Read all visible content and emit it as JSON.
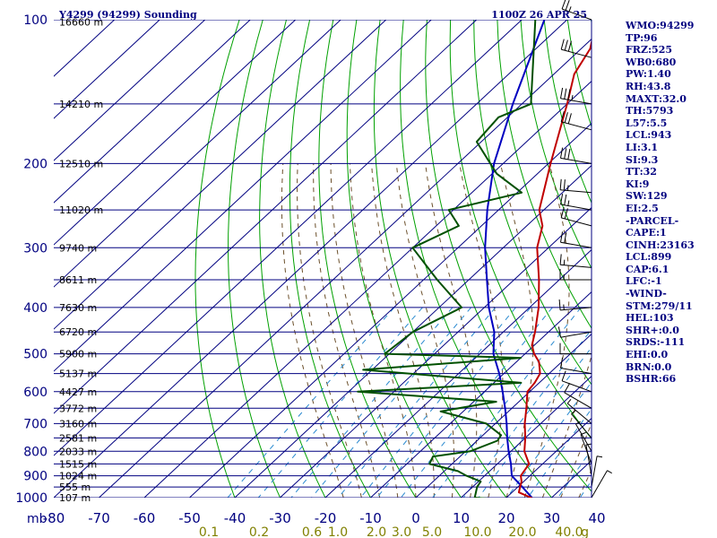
{
  "chart_data": {
    "type": "skew-t",
    "title_left": "Y4299 (94299) Sounding",
    "title_right": "1100Z 26 APR 25",
    "pressure_unit": "mb",
    "mixing_unit": "g",
    "pressure_ticks": [
      100,
      200,
      300,
      400,
      500,
      600,
      700,
      800,
      900,
      1000
    ],
    "pressure_ticks_text": [
      "100",
      "200",
      "300",
      "400",
      "500",
      "600",
      "700",
      "800",
      "900",
      "1000"
    ],
    "temperature_ticks": [
      -80,
      -70,
      -60,
      -50,
      -40,
      -30,
      -20,
      -10,
      0,
      10,
      20,
      30,
      40
    ],
    "temperature_ticks_text": [
      "-80",
      "-70",
      "-60",
      "-50",
      "-40",
      "-30",
      "-20",
      "-10",
      "0",
      "10",
      "20",
      "30",
      "40"
    ],
    "height_levels": [
      {
        "p": 101,
        "label": "16660 m"
      },
      {
        "p": 150,
        "label": "14210 m"
      },
      {
        "p": 200,
        "label": "12510 m"
      },
      {
        "p": 250,
        "label": "11020 m"
      },
      {
        "p": 300,
        "label": "9740 m"
      },
      {
        "p": 350,
        "label": "8611 m"
      },
      {
        "p": 400,
        "label": "7630 m"
      },
      {
        "p": 450,
        "label": "6720 m"
      },
      {
        "p": 500,
        "label": "5900 m"
      },
      {
        "p": 550,
        "label": "5137 m"
      },
      {
        "p": 600,
        "label": "4427 m"
      },
      {
        "p": 650,
        "label": "3772 m"
      },
      {
        "p": 700,
        "label": "3160 m"
      },
      {
        "p": 750,
        "label": "2581 m"
      },
      {
        "p": 800,
        "label": "2033 m"
      },
      {
        "p": 850,
        "label": "1515 m"
      },
      {
        "p": 900,
        "label": "1024 m"
      },
      {
        "p": 950,
        "label": "555 m"
      },
      {
        "p": 1000,
        "label": "107 m"
      }
    ],
    "mixing_ratio_labels": [
      "0.1",
      "0.2",
      "0.6",
      "1.0",
      "2.0",
      "3.0",
      "5.0",
      "10.0",
      "20.0",
      "40.0"
    ],
    "temperature_profile": [
      [
        1004,
        26.0
      ],
      [
        975,
        21.5
      ],
      [
        950,
        20.5
      ],
      [
        925,
        19.5
      ],
      [
        900,
        18.0
      ],
      [
        850,
        17.0
      ],
      [
        800,
        13.0
      ],
      [
        750,
        10.0
      ],
      [
        700,
        6.5
      ],
      [
        650,
        3.2
      ],
      [
        600,
        -0.5
      ],
      [
        575,
        -1.0
      ],
      [
        550,
        -2.0
      ],
      [
        520,
        -5.0
      ],
      [
        500,
        -8.0
      ],
      [
        480,
        -10.5
      ],
      [
        450,
        -13.0
      ],
      [
        400,
        -18.0
      ],
      [
        350,
        -24.5
      ],
      [
        300,
        -32.5
      ],
      [
        270,
        -36.5
      ],
      [
        250,
        -41.0
      ],
      [
        200,
        -49.5
      ],
      [
        150,
        -60.0
      ],
      [
        130,
        -65.5
      ],
      [
        115,
        -68.0
      ],
      [
        100,
        -73.5
      ]
    ],
    "dewpoint_profile": [
      [
        1004,
        16.0
      ],
      [
        1000,
        13.0
      ],
      [
        950,
        11.0
      ],
      [
        925,
        10.5
      ],
      [
        900,
        6.0
      ],
      [
        880,
        3.0
      ],
      [
        850,
        -5.0
      ],
      [
        820,
        -6.0
      ],
      [
        800,
        1.0
      ],
      [
        760,
        4.5
      ],
      [
        740,
        4.0
      ],
      [
        700,
        -2.0
      ],
      [
        660,
        -15.0
      ],
      [
        630,
        -5.0
      ],
      [
        600,
        -38.0
      ],
      [
        575,
        -4.0
      ],
      [
        540,
        -42.0
      ],
      [
        510,
        -10.0
      ],
      [
        500,
        -41.0
      ],
      [
        450,
        -40.0
      ],
      [
        400,
        -35.0
      ],
      [
        350,
        -47.0
      ],
      [
        300,
        -60.0
      ],
      [
        270,
        -55.0
      ],
      [
        250,
        -61.0
      ],
      [
        230,
        -49.0
      ],
      [
        210,
        -59.0
      ],
      [
        180,
        -71.0
      ],
      [
        160,
        -72.0
      ],
      [
        150,
        -68.0
      ],
      [
        100,
        -87.0
      ]
    ],
    "parcel_profile": [
      [
        1004,
        26.0
      ],
      [
        950,
        21.0
      ],
      [
        900,
        16.0
      ],
      [
        850,
        13.0
      ],
      [
        800,
        9.5
      ],
      [
        750,
        6.0
      ],
      [
        700,
        2.5
      ],
      [
        650,
        -1.5
      ],
      [
        600,
        -6.0
      ],
      [
        550,
        -11.0
      ],
      [
        500,
        -17.0
      ],
      [
        450,
        -22.0
      ],
      [
        400,
        -29.0
      ],
      [
        350,
        -36.0
      ],
      [
        300,
        -44.0
      ],
      [
        250,
        -52.5
      ],
      [
        200,
        -62.0
      ],
      [
        150,
        -72.0
      ],
      [
        100,
        -85.0
      ]
    ],
    "wind_profile": [
      [
        100,
        290,
        25
      ],
      [
        120,
        285,
        30
      ],
      [
        150,
        280,
        35
      ],
      [
        170,
        285,
        30
      ],
      [
        200,
        280,
        30
      ],
      [
        230,
        275,
        25
      ],
      [
        250,
        280,
        25
      ],
      [
        270,
        285,
        20
      ],
      [
        300,
        280,
        20
      ],
      [
        330,
        275,
        15
      ],
      [
        350,
        270,
        15
      ],
      [
        400,
        265,
        15
      ],
      [
        450,
        260,
        10
      ],
      [
        500,
        270,
        10
      ],
      [
        550,
        280,
        10
      ],
      [
        600,
        290,
        10
      ],
      [
        650,
        300,
        10
      ],
      [
        700,
        310,
        5
      ],
      [
        750,
        320,
        5
      ],
      [
        800,
        330,
        5
      ],
      [
        850,
        340,
        5
      ],
      [
        900,
        350,
        5
      ],
      [
        950,
        10,
        5
      ],
      [
        1000,
        30,
        5
      ]
    ],
    "colors": {
      "isobar": "#000080",
      "isotherm": "#000080",
      "dry_adiabat": "#00a000",
      "moist_adiabat": "#6b4f2a",
      "mixing_ratio": "#2a8ad0",
      "temperature": "#c00000",
      "dewpoint": "#005000",
      "parcel": "#0000c0",
      "wind": "#000000"
    }
  },
  "indices": [
    "WMO:94299",
    "TP:96",
    "FRZ:525",
    "WB0:680",
    "PW:1.40",
    "RH:43.8",
    "MAXT:32.0",
    "TH:5793",
    "L57:5.5",
    "LCL:943",
    "LI:3.1",
    "SI:9.3",
    "TT:32",
    "KI:9",
    "SW:129",
    "EI:2.5",
    "-PARCEL-",
    "CAPE:1",
    "CINH:23163",
    "LCL:899",
    "CAP:6.1",
    "LFC:-1",
    "-WIND-",
    "STM:279/11",
    "HEL:103",
    "SHR+:0.0",
    "SRDS:-111",
    "EHI:0.0",
    "BRN:0.0",
    "BSHR:66"
  ]
}
